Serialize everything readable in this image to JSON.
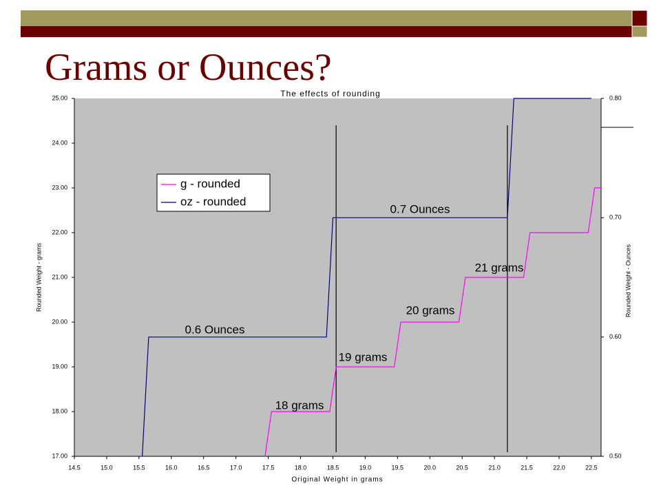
{
  "slide": {
    "title": "Grams or Ounces?"
  },
  "chart_data": {
    "type": "line",
    "title": "The effects of rounding",
    "x_label": "Original Weight in grams",
    "y_label": "Rounded Weight - grams",
    "y2_label": "Rounded Weight - Ounces",
    "xlim": [
      14.5,
      22.65
    ],
    "xticks": [
      14.5,
      {
        "value": 15,
        "label": "15.0"
      },
      15.5,
      {
        "value": 16,
        "label": "16.0"
      },
      16.5,
      {
        "value": 17,
        "label": "17.0"
      },
      17.5,
      {
        "value": 18,
        "label": "18.0"
      },
      18.5,
      {
        "value": 19,
        "label": "19.0"
      },
      19.5,
      {
        "value": 20,
        "label": "20.0"
      },
      20.5,
      {
        "value": 21,
        "label": "21.0"
      },
      21.5,
      {
        "value": 22,
        "label": "22.0"
      },
      22.5
    ],
    "ylim": [
      17,
      25
    ],
    "yticks": [
      {
        "value": 17,
        "label": "17.00"
      },
      {
        "value": 18,
        "label": "18.00"
      },
      {
        "value": 19,
        "label": "19.00"
      },
      {
        "value": 20,
        "label": "20.00"
      },
      {
        "value": 21,
        "label": "21.00"
      },
      {
        "value": 22,
        "label": "22.00"
      },
      {
        "value": 23,
        "label": "23.00"
      },
      {
        "value": 24,
        "label": "24.00"
      },
      {
        "value": 25,
        "label": "25.00"
      }
    ],
    "y2lim": [
      0.5,
      0.8
    ],
    "y2ticks": [
      {
        "value": 0.5,
        "label": "0.50"
      },
      {
        "value": 0.6,
        "label": "0.60"
      },
      {
        "value": 0.7,
        "label": "0.70"
      },
      {
        "value": 0.8,
        "label": "0.80"
      }
    ],
    "plot_background": "#c0c0c0",
    "series": [
      {
        "name": "g - rounded",
        "color": "#ff00ff",
        "x": [
          17.45,
          17.55,
          18.45,
          18.55,
          19.45,
          19.55,
          20.45,
          20.55,
          21.45,
          21.55,
          22.45,
          22.55,
          22.65
        ],
        "values": [
          17,
          18,
          18,
          19,
          19,
          20,
          20,
          21,
          21,
          22,
          22,
          23,
          23
        ]
      },
      {
        "name": "oz - rounded",
        "color": "#000080",
        "axis": "y2",
        "x": [
          15.55,
          15.65,
          18.4,
          18.5,
          21.2,
          21.3,
          22.5
        ],
        "values": [
          0.5,
          0.6,
          0.6,
          0.7,
          0.7,
          0.8,
          0.8
        ]
      }
    ],
    "vlines": [
      18.55,
      21.2
    ],
    "annotations": [
      "0.6 Ounces",
      "0.7 Ounces",
      "18 grams",
      "19 grams",
      "20 grams",
      "21 grams"
    ],
    "legend": "upper left"
  }
}
